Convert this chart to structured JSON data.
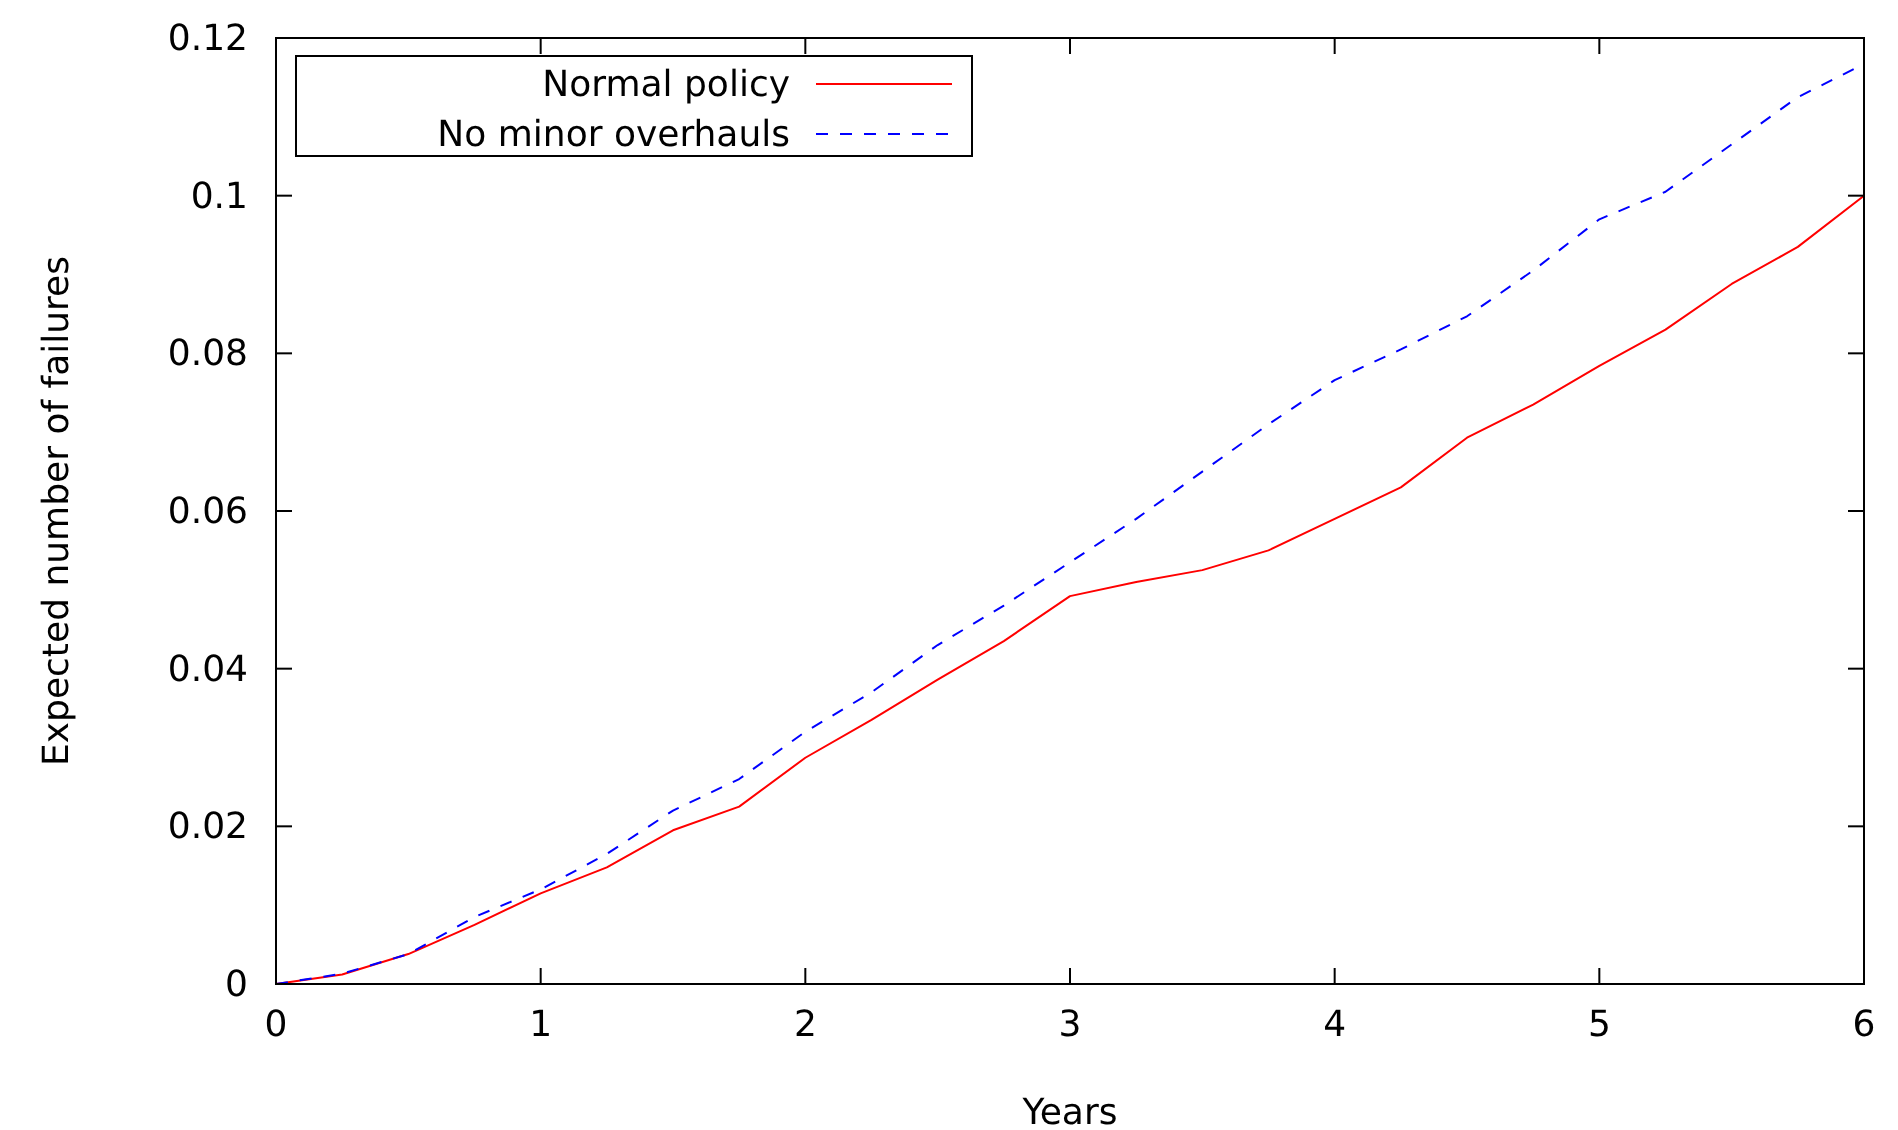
{
  "chart_data": {
    "type": "line",
    "xlabel": "Years",
    "ylabel": "Expected number of failures",
    "xlim": [
      0,
      6
    ],
    "ylim": [
      0,
      0.12
    ],
    "xticks": [
      0,
      1,
      2,
      3,
      4,
      5,
      6
    ],
    "yticks": [
      0,
      0.02,
      0.04,
      0.06,
      0.08,
      0.1,
      0.12
    ],
    "grid": false,
    "legend": "top left",
    "x": [
      0,
      0.25,
      0.5,
      0.75,
      1,
      1.25,
      1.5,
      1.75,
      2,
      2.25,
      2.5,
      2.75,
      3,
      3.25,
      3.5,
      3.75,
      4,
      4.25,
      4.5,
      4.75,
      5,
      5.25,
      5.5,
      5.75,
      6
    ],
    "series": [
      {
        "name": "Normal policy",
        "color": "#ff0000",
        "line_style": "solid",
        "values": [
          0,
          0.0012,
          0.0038,
          0.0075,
          0.0115,
          0.0148,
          0.0195,
          0.0225,
          0.0287,
          0.0335,
          0.0386,
          0.0435,
          0.0492,
          0.051,
          0.0525,
          0.055,
          0.059,
          0.063,
          0.0693,
          0.0735,
          0.0784,
          0.083,
          0.0888,
          0.0935,
          0.1
        ]
      },
      {
        "name": "No minor overhauls",
        "color": "#0000ff",
        "line_style": "dashed",
        "values": [
          0,
          0.0013,
          0.0038,
          0.0085,
          0.012,
          0.0165,
          0.022,
          0.026,
          0.032,
          0.037,
          0.043,
          0.048,
          0.0535,
          0.059,
          0.065,
          0.071,
          0.0766,
          0.0805,
          0.0847,
          0.0905,
          0.097,
          0.1005,
          0.1065,
          0.1125,
          0.1167
        ]
      }
    ]
  }
}
